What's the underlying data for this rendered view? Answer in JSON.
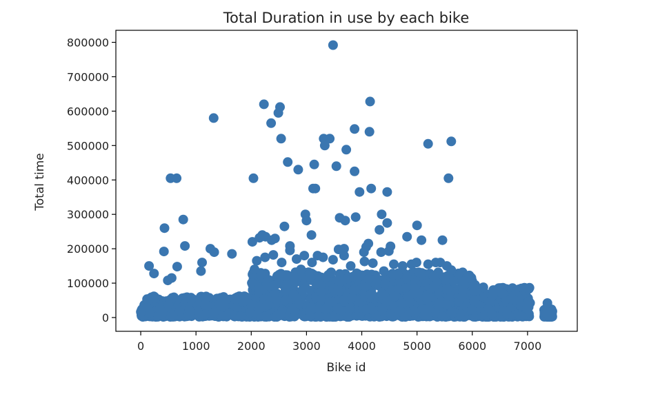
{
  "chart_data": {
    "type": "scatter",
    "title": "Total Duration in use by each bike",
    "xlabel": "Bike id",
    "ylabel": "Total time",
    "xlim": [
      -450,
      7900
    ],
    "ylim": [
      -40000,
      835000
    ],
    "xticks": [
      0,
      1000,
      2000,
      3000,
      4000,
      5000,
      6000,
      7000
    ],
    "yticks": [
      0,
      100000,
      200000,
      300000,
      400000,
      500000,
      600000,
      700000,
      800000
    ],
    "grid": false,
    "color": "#3a76b0",
    "points": [
      [
        3480,
        792000
      ],
      [
        4150,
        628000
      ],
      [
        2230,
        620000
      ],
      [
        2520,
        612000
      ],
      [
        2490,
        595000
      ],
      [
        1320,
        580000
      ],
      [
        2360,
        565000
      ],
      [
        3870,
        548000
      ],
      [
        4140,
        540000
      ],
      [
        2540,
        520000
      ],
      [
        3310,
        520000
      ],
      [
        3420,
        520000
      ],
      [
        3330,
        500000
      ],
      [
        3720,
        488000
      ],
      [
        5200,
        505000
      ],
      [
        5620,
        512000
      ],
      [
        2660,
        452000
      ],
      [
        2850,
        430000
      ],
      [
        3140,
        445000
      ],
      [
        3540,
        440000
      ],
      [
        3870,
        425000
      ],
      [
        3120,
        375000
      ],
      [
        3160,
        375000
      ],
      [
        4170,
        375000
      ],
      [
        3960,
        365000
      ],
      [
        4460,
        365000
      ],
      [
        540,
        405000
      ],
      [
        650,
        405000
      ],
      [
        2040,
        405000
      ],
      [
        5570,
        405000
      ],
      [
        2980,
        300000
      ],
      [
        3000,
        282000
      ],
      [
        3600,
        290000
      ],
      [
        3700,
        282000
      ],
      [
        3890,
        292000
      ],
      [
        4360,
        300000
      ],
      [
        4460,
        275000
      ],
      [
        4320,
        255000
      ],
      [
        2600,
        265000
      ],
      [
        5000,
        268000
      ],
      [
        430,
        260000
      ],
      [
        770,
        285000
      ],
      [
        3090,
        240000
      ],
      [
        4820,
        235000
      ],
      [
        5080,
        225000
      ],
      [
        5460,
        225000
      ],
      [
        2200,
        240000
      ],
      [
        2260,
        235000
      ],
      [
        2370,
        225000
      ],
      [
        2430,
        230000
      ],
      [
        2020,
        220000
      ],
      [
        2150,
        232000
      ],
      [
        2700,
        208000
      ],
      [
        2700,
        195000
      ],
      [
        3580,
        198000
      ],
      [
        3680,
        200000
      ],
      [
        4080,
        205000
      ],
      [
        4120,
        215000
      ],
      [
        4520,
        207000
      ],
      [
        4490,
        193000
      ],
      [
        4350,
        190000
      ],
      [
        4040,
        190000
      ],
      [
        800,
        208000
      ],
      [
        420,
        192000
      ],
      [
        1260,
        200000
      ],
      [
        1330,
        190000
      ],
      [
        1650,
        185000
      ],
      [
        150,
        150000
      ],
      [
        660,
        148000
      ],
      [
        1110,
        160000
      ],
      [
        1090,
        135000
      ],
      [
        240,
        128000
      ],
      [
        490,
        108000
      ],
      [
        560,
        115000
      ],
      [
        2960,
        180000
      ],
      [
        3200,
        180000
      ],
      [
        3300,
        175000
      ],
      [
        3480,
        168000
      ],
      [
        3680,
        180000
      ],
      [
        4050,
        163000
      ],
      [
        4200,
        158000
      ],
      [
        4580,
        155000
      ],
      [
        4740,
        150000
      ],
      [
        4900,
        155000
      ],
      [
        4990,
        160000
      ],
      [
        5200,
        155000
      ],
      [
        5340,
        160000
      ],
      [
        5420,
        160000
      ],
      [
        5540,
        150000
      ],
      [
        5620,
        138000
      ],
      [
        2100,
        165000
      ],
      [
        2250,
        175000
      ],
      [
        2400,
        182000
      ],
      [
        2550,
        160000
      ],
      [
        2820,
        170000
      ],
      [
        1500,
        60000
      ],
      [
        1700,
        55000
      ],
      [
        1850,
        45000
      ],
      [
        2060,
        140000
      ],
      [
        2180,
        125000
      ],
      [
        2900,
        140000
      ],
      [
        3100,
        160000
      ],
      [
        3800,
        150000
      ],
      [
        4400,
        135000
      ],
      [
        4650,
        125000
      ],
      [
        5300,
        120000
      ],
      [
        5850,
        105000
      ],
      [
        6050,
        95000
      ],
      [
        6200,
        88000
      ],
      [
        6380,
        80000
      ],
      [
        6500,
        75000
      ],
      [
        6720,
        55000
      ],
      [
        6850,
        48000
      ],
      [
        6990,
        38000
      ],
      [
        7360,
        42000
      ],
      [
        7450,
        18000
      ]
    ]
  }
}
